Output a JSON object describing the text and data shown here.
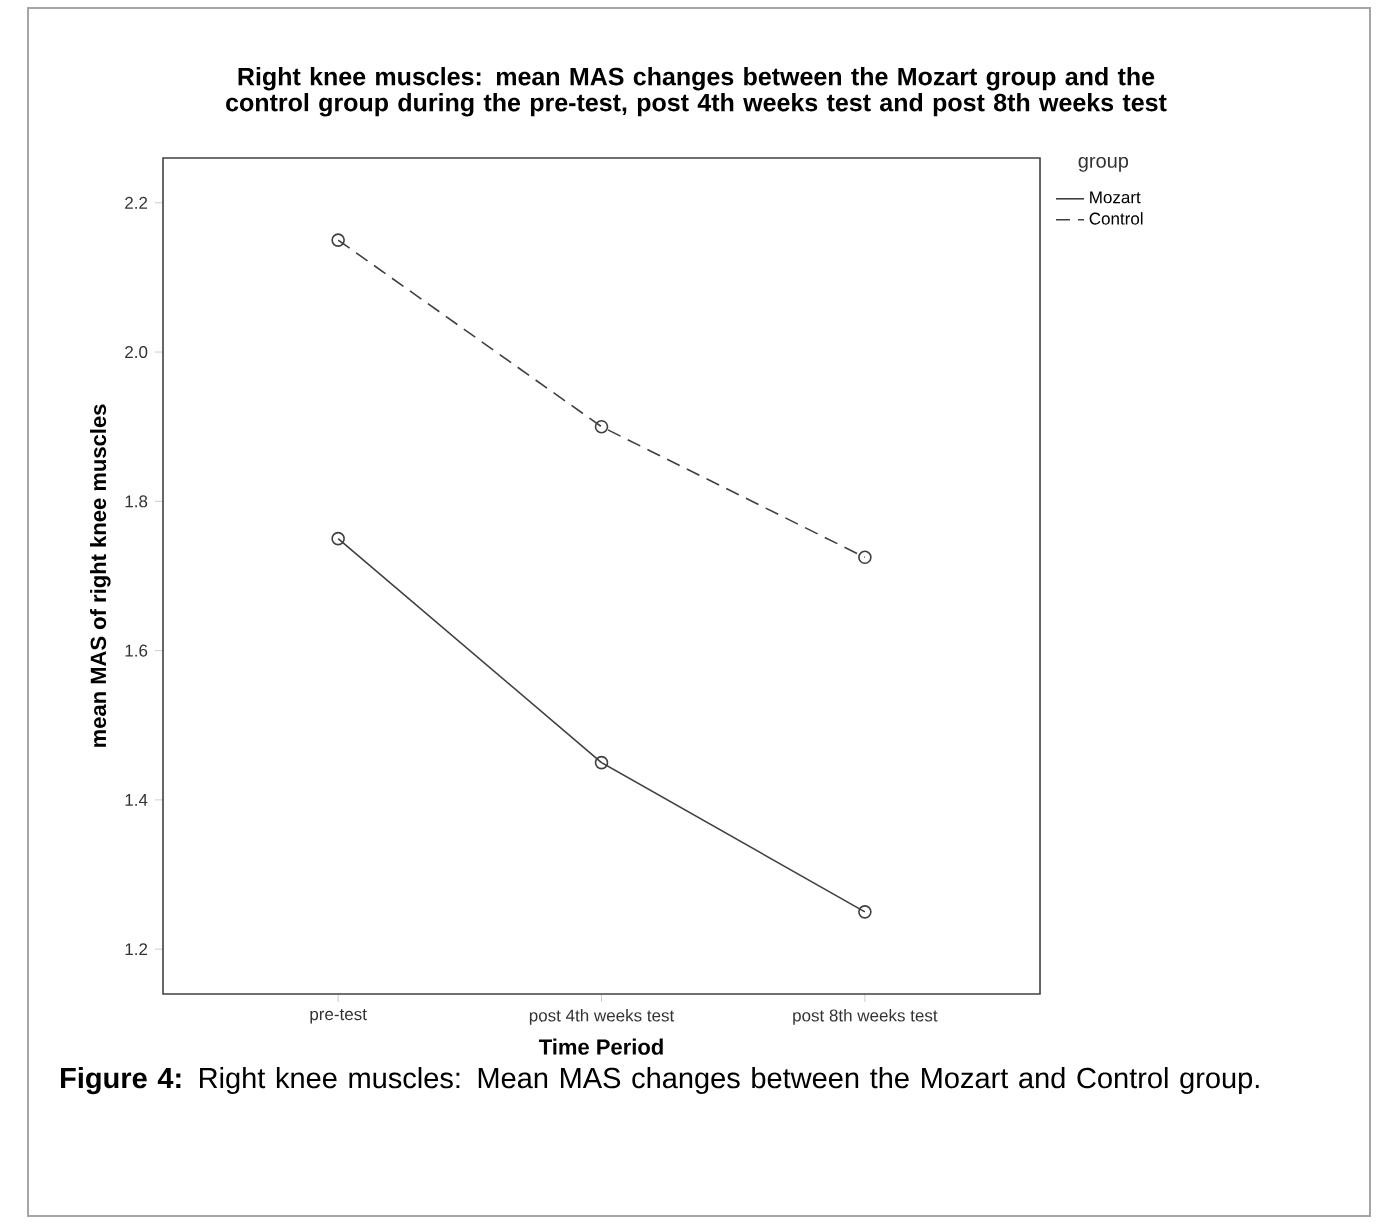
{
  "chart_data": {
    "type": "line",
    "title": "Right knee muscles: mean MAS changes between the Mozart group and the control group during the pre-test, post 4th weeks test and post 8th weeks test",
    "xlabel": "Time Period",
    "ylabel": "mean MAS of right knee muscles",
    "legend_title": "group",
    "categories": [
      "pre-test",
      "post 4th weeks test",
      "post 8th weeks test"
    ],
    "series": [
      {
        "name": "Mozart",
        "color": "#404040",
        "line_style": "solid",
        "values": [
          1.75,
          1.45,
          1.25
        ]
      },
      {
        "name": "Control",
        "color": "#404040",
        "line_style": "dashed",
        "values": [
          2.15,
          1.9,
          1.725
        ]
      }
    ],
    "ylim": [
      1.14,
      2.26
    ],
    "yticks": [
      1.2,
      1.4,
      1.6,
      1.8,
      {
        "value": 2,
        "label": "2.0"
      },
      2.2
    ],
    "marker": "circle",
    "legend": "right",
    "grid": false,
    "annotations": [
      "**Figure 4:** Right knee muscles: Mean MAS changes between the Mozart and Control group."
    ]
  }
}
